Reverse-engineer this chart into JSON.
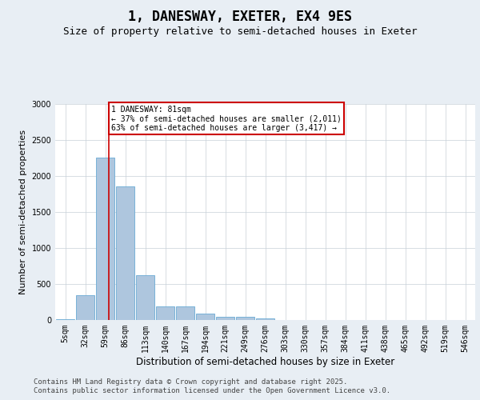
{
  "title": "1, DANESWAY, EXETER, EX4 9ES",
  "subtitle": "Size of property relative to semi-detached houses in Exeter",
  "xlabel": "Distribution of semi-detached houses by size in Exeter",
  "ylabel": "Number of semi-detached properties",
  "categories": [
    "5sqm",
    "32sqm",
    "59sqm",
    "86sqm",
    "113sqm",
    "140sqm",
    "167sqm",
    "194sqm",
    "221sqm",
    "249sqm",
    "276sqm",
    "303sqm",
    "330sqm",
    "357sqm",
    "384sqm",
    "411sqm",
    "438sqm",
    "465sqm",
    "492sqm",
    "519sqm",
    "546sqm"
  ],
  "values": [
    15,
    350,
    2260,
    1860,
    620,
    185,
    185,
    90,
    50,
    45,
    20,
    0,
    0,
    0,
    0,
    0,
    0,
    0,
    0,
    0,
    0
  ],
  "bar_color": "#aec6de",
  "bar_edge_color": "#6aaad4",
  "property_label": "1 DANESWAY: 81sqm",
  "pct_smaller": 37,
  "count_smaller": 2011,
  "pct_larger": 63,
  "count_larger": 3417,
  "vline_x": 2.18,
  "vline_color": "#cc0000",
  "annotation_box_color": "#cc0000",
  "ylim": [
    0,
    3000
  ],
  "yticks": [
    0,
    500,
    1000,
    1500,
    2000,
    2500,
    3000
  ],
  "background_color": "#e8eef4",
  "plot_background": "#ffffff",
  "grid_color": "#c8d0d8",
  "footer_line1": "Contains HM Land Registry data © Crown copyright and database right 2025.",
  "footer_line2": "Contains public sector information licensed under the Open Government Licence v3.0.",
  "title_fontsize": 12,
  "subtitle_fontsize": 9,
  "xlabel_fontsize": 8.5,
  "ylabel_fontsize": 8,
  "tick_fontsize": 7,
  "footer_fontsize": 6.5
}
